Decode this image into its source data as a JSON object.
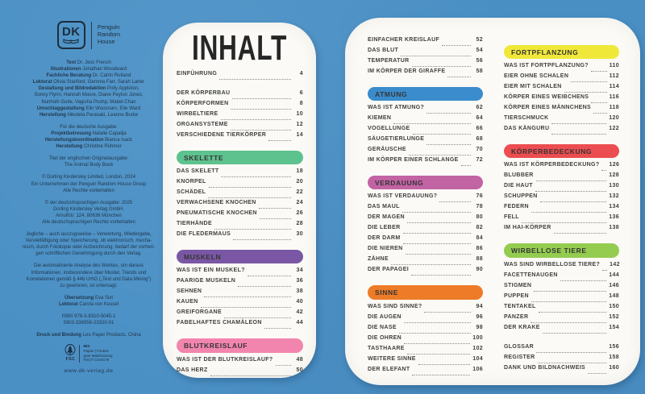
{
  "colors": {
    "background": "#4a90c5",
    "page": "#fbfaf6",
    "imprint_text": "#22384e",
    "toc_text": "#3f3f3f",
    "skelette": "#5ec28e",
    "muskeln": "#7a57a5",
    "blutkreislauf": "#f285ae",
    "atmung": "#3a8ccc",
    "verdauung": "#c263a4",
    "sinne": "#ee7b28",
    "fortpflanzung": "#f0e838",
    "koerperbedeckung": "#ec4d50",
    "wirbellose": "#94cc50"
  },
  "imprint": {
    "dk_logo_text": "DK",
    "publisher_lines": [
      "Penguin",
      "Random",
      "House"
    ],
    "blocks": [
      {
        "lines": [
          [
            [
              "b",
              "Text "
            ],
            [
              "r",
              "Dr. Jess French"
            ]
          ],
          [
            [
              "b",
              "Illustrationen "
            ],
            [
              "r",
              "Jonathan Woodward"
            ]
          ],
          [
            [
              "b",
              "Fachliche Beratung "
            ],
            [
              "r",
              "Dr. Catrin Rutland"
            ]
          ],
          [
            [
              "b",
              "Lektorat "
            ],
            [
              "r",
              "Olivia Stanford, Gemma Farr, Sarah Larter"
            ]
          ],
          [
            [
              "b",
              "Gestaltung und Bildredaktion "
            ],
            [
              "r",
              "Polly Appleton,"
            ]
          ],
          [
            [
              "r",
              "Sonny Flynn, Hannah Moore, Diane Peyton Jones,"
            ]
          ],
          [
            [
              "r",
              "Nunhoih Guite, Vagisha Pushp, Mabel Chan"
            ]
          ],
          [
            [
              "b",
              "Umschlaggestaltung "
            ],
            [
              "r",
              "Elin Woosnam, Elle Ward"
            ]
          ],
          [
            [
              "b",
              "Herstellung "
            ],
            [
              "r",
              "Nikoleta Parasaki, Leanne Burke"
            ]
          ]
        ]
      },
      {
        "lines": [
          [
            [
              "r",
              "Für die deutsche Ausgabe:"
            ]
          ],
          [
            [
              "b",
              "Projektbetreuung "
            ],
            [
              "r",
              "Natalie Capalija"
            ]
          ],
          [
            [
              "b",
              "Herstellungskoordination "
            ],
            [
              "r",
              "Bianca Isack"
            ]
          ],
          [
            [
              "b",
              "Herstellung "
            ],
            [
              "r",
              "Christine Rühmer"
            ]
          ]
        ]
      },
      {
        "lines": [
          [
            [
              "r",
              "Titel der englischen Originalausgabe:"
            ]
          ],
          [
            [
              "r",
              "The Animal Body Book"
            ]
          ]
        ]
      },
      {
        "lines": [
          [
            [
              "r",
              "© Dorling Kindersley Limited, London, 2024"
            ]
          ],
          [
            [
              "r",
              "Ein Unternehmen der Penguin Random House Group"
            ]
          ],
          [
            [
              "r",
              "Alle Rechte vorbehalten"
            ]
          ]
        ]
      },
      {
        "lines": [
          [
            [
              "r",
              "© der deutschsprachigen Ausgabe: 2025"
            ]
          ],
          [
            [
              "r",
              "Dorling Kindersley Verlag GmbH,"
            ]
          ],
          [
            [
              "r",
              "Arnulfstr. 124, 80636 München"
            ]
          ],
          [
            [
              "r",
              "Alle deutschsprachigen Rechte vorbehalten"
            ]
          ]
        ]
      },
      {
        "lines": [
          [
            [
              "r",
              "Jegliche – auch auszugsweise – Verwertung, Wiedergabe,"
            ]
          ],
          [
            [
              "r",
              "Vervielfältigung oder Speicherung, ob elektronisch, mecha-"
            ]
          ],
          [
            [
              "r",
              "nisch, durch Fotokopie oder Aufzeichnung, bedarf der vorheri-"
            ]
          ],
          [
            [
              "r",
              "gen schriftlichen Genehmigung durch den Verlag."
            ]
          ]
        ]
      },
      {
        "lines": [
          [
            [
              "r",
              "Die automatisierte Analyse des Werkes, um daraus"
            ]
          ],
          [
            [
              "r",
              "Informationen, insbesondere über Muster, Trends und"
            ]
          ],
          [
            [
              "r",
              "Korrelationen gemäß § 44b UrhG („Text und Data Mining“)"
            ]
          ],
          [
            [
              "r",
              "zu gewinnen, ist untersagt."
            ]
          ]
        ]
      },
      {
        "lines": [
          [
            [
              "b",
              "Übersetzung "
            ],
            [
              "r",
              "Eva Sixt"
            ]
          ],
          [
            [
              "b",
              "Lektorat "
            ],
            [
              "r",
              "Carola von Kessel"
            ]
          ]
        ]
      },
      {
        "lines": [
          [
            [
              "r",
              "ISBN 978-3-8310-5045-1"
            ]
          ],
          [
            [
              "r",
              "5903-336956-23320-01"
            ]
          ]
        ]
      },
      {
        "lines": [
          [
            [
              "b",
              "Druck und Bindung "
            ],
            [
              "r",
              "Leo Paper Products, China"
            ]
          ]
        ]
      }
    ],
    "fsc": {
      "label": "FSC",
      "mix_lines": [
        "MIX",
        "Papier | Fördert",
        "gute Waldnutzung",
        "FSC® C018179"
      ]
    },
    "website": "www.dk-verlag.de"
  },
  "left_page": {
    "title": "INHALT",
    "sections": [
      {
        "header": null,
        "color": null,
        "gap": false,
        "items": [
          [
            "EINFÜHRUNG",
            "4"
          ]
        ]
      },
      {
        "header": null,
        "color": null,
        "gap": true,
        "items": [
          [
            "DER KÖRPERBAU",
            "6"
          ],
          [
            "KÖRPERFORMEN",
            "8"
          ],
          [
            "WIRBELTIERE",
            "10"
          ],
          [
            "ORGANSYSTEME",
            "12"
          ],
          [
            "VERSCHIEDENE TIERKÖRPER",
            "14"
          ]
        ]
      },
      {
        "header": "SKELETTE",
        "color": "#5ec28e",
        "gap": false,
        "items": [
          [
            "DAS SKELETT",
            "18"
          ],
          [
            "KNORPEL",
            "20"
          ],
          [
            "SCHÄDEL",
            "22"
          ],
          [
            "VERWACHSENE KNOCHEN",
            "24"
          ],
          [
            "PNEUMATISCHE KNOCHEN",
            "26"
          ],
          [
            "TIERHÄNDE",
            "28"
          ],
          [
            "DIE FLEDERMAUS",
            "30"
          ]
        ]
      },
      {
        "header": "MUSKELN",
        "color": "#7a57a5",
        "gap": false,
        "items": [
          [
            "WAS IST EIN MUSKEL?",
            "34"
          ],
          [
            "PAARIGE MUSKELN",
            "36"
          ],
          [
            "SEHNEN",
            "38"
          ],
          [
            "KAUEN",
            "40"
          ],
          [
            "GREIFORGANE",
            "42"
          ],
          [
            "FABELHAFTES CHAMÄLEON",
            "44"
          ]
        ]
      },
      {
        "header": "BLUTKREISLAUF",
        "color": "#f285ae",
        "gap": false,
        "items": [
          [
            "WAS IST DER BLUTKREISLAUF?",
            "48"
          ],
          [
            "DAS HERZ",
            "50"
          ]
        ]
      }
    ]
  },
  "right_page": {
    "col1_sections": [
      {
        "header": null,
        "color": null,
        "gap": false,
        "items": [
          [
            "EINFACHER KREISLAUF",
            "52"
          ],
          [
            "DAS BLUT",
            "54"
          ],
          [
            "TEMPERATUR",
            "56"
          ],
          [
            "IM KÖRPER DER GIRAFFE",
            "58"
          ]
        ]
      },
      {
        "header": "ATMUNG",
        "color": "#3a8ccc",
        "gap": false,
        "items": [
          [
            "WAS IST ATMUNG?",
            "62"
          ],
          [
            "KIEMEN",
            "64"
          ],
          [
            "VOGELLUNGE",
            "66"
          ],
          [
            "SÄUGETIERLUNGE",
            "68"
          ],
          [
            "GERÄUSCHE",
            "70"
          ],
          [
            "IM KÖRPER EINER SCHLANGE",
            "72"
          ]
        ]
      },
      {
        "header": "VERDAUUNG",
        "color": "#c263a4",
        "gap": false,
        "items": [
          [
            "WAS IST VERDAUUNG?",
            "76"
          ],
          [
            "DAS MAUL",
            "78"
          ],
          [
            "DER MAGEN",
            "80"
          ],
          [
            "DIE LEBER",
            "82"
          ],
          [
            "DER DARM",
            "84"
          ],
          [
            "DIE NIEREN",
            "86"
          ],
          [
            "ZÄHNE",
            "88"
          ],
          [
            "DER PAPAGEI",
            "90"
          ]
        ]
      },
      {
        "header": "SINNE",
        "color": "#ee7b28",
        "gap": false,
        "items": [
          [
            "WAS SIND SINNE?",
            "94"
          ],
          [
            "DIE AUGEN",
            "96"
          ],
          [
            "DIE NASE",
            "98"
          ],
          [
            "DIE OHREN",
            "100"
          ],
          [
            "TASTHAARE",
            "102"
          ],
          [
            "WEITERE SINNE",
            "104"
          ],
          [
            "DER ELEFANT",
            "106"
          ]
        ]
      }
    ],
    "col2_sections": [
      {
        "header": "FORTPFLANZUNG",
        "color": "#f0e838",
        "gap": false,
        "items": [
          [
            "WAS IST FORTPFLANZUNG?",
            "110"
          ],
          [
            "EIER OHNE SCHALEN",
            "112"
          ],
          [
            "EIER MIT SCHALEN",
            "114"
          ],
          [
            "KÖRPER EINES WEIBCHENS",
            "116"
          ],
          [
            "KÖRPER EINES MÄNNCHENS",
            "118"
          ],
          [
            "TIERSCHMUCK",
            "120"
          ],
          [
            "DAS KÄNGURU",
            "122"
          ]
        ]
      },
      {
        "header": "KÖRPERBEDECKUNG",
        "color": "#ec4d50",
        "gap": false,
        "items": [
          [
            "WAS IST KÖRPERBEDECKUNG?",
            "126"
          ],
          [
            "BLUBBER",
            "128"
          ],
          [
            "DIE HAUT",
            "130"
          ],
          [
            "SCHUPPEN",
            "132"
          ],
          [
            "FEDERN",
            "134"
          ],
          [
            "FELL",
            "136"
          ],
          [
            "IM HAI-KÖRPER",
            "138"
          ]
        ]
      },
      {
        "header": "WIRBELLOSE TIERE",
        "color": "#94cc50",
        "gap": false,
        "items": [
          [
            "WAS SIND WIRBELLOSE TIERE?",
            "142"
          ],
          [
            "FACETTENAUGEN",
            "144"
          ],
          [
            "STIGMEN",
            "146"
          ],
          [
            "PUPPEN",
            "148"
          ],
          [
            "TENTAKEL",
            "150"
          ],
          [
            "PANZER",
            "152"
          ],
          [
            "DER KRAKE",
            "154"
          ]
        ]
      },
      {
        "header": null,
        "color": null,
        "gap": true,
        "items": [
          [
            "GLOSSAR",
            "156"
          ],
          [
            "REGISTER",
            "158"
          ],
          [
            "DANK UND BILDNACHWEIS",
            "160"
          ]
        ]
      }
    ]
  }
}
